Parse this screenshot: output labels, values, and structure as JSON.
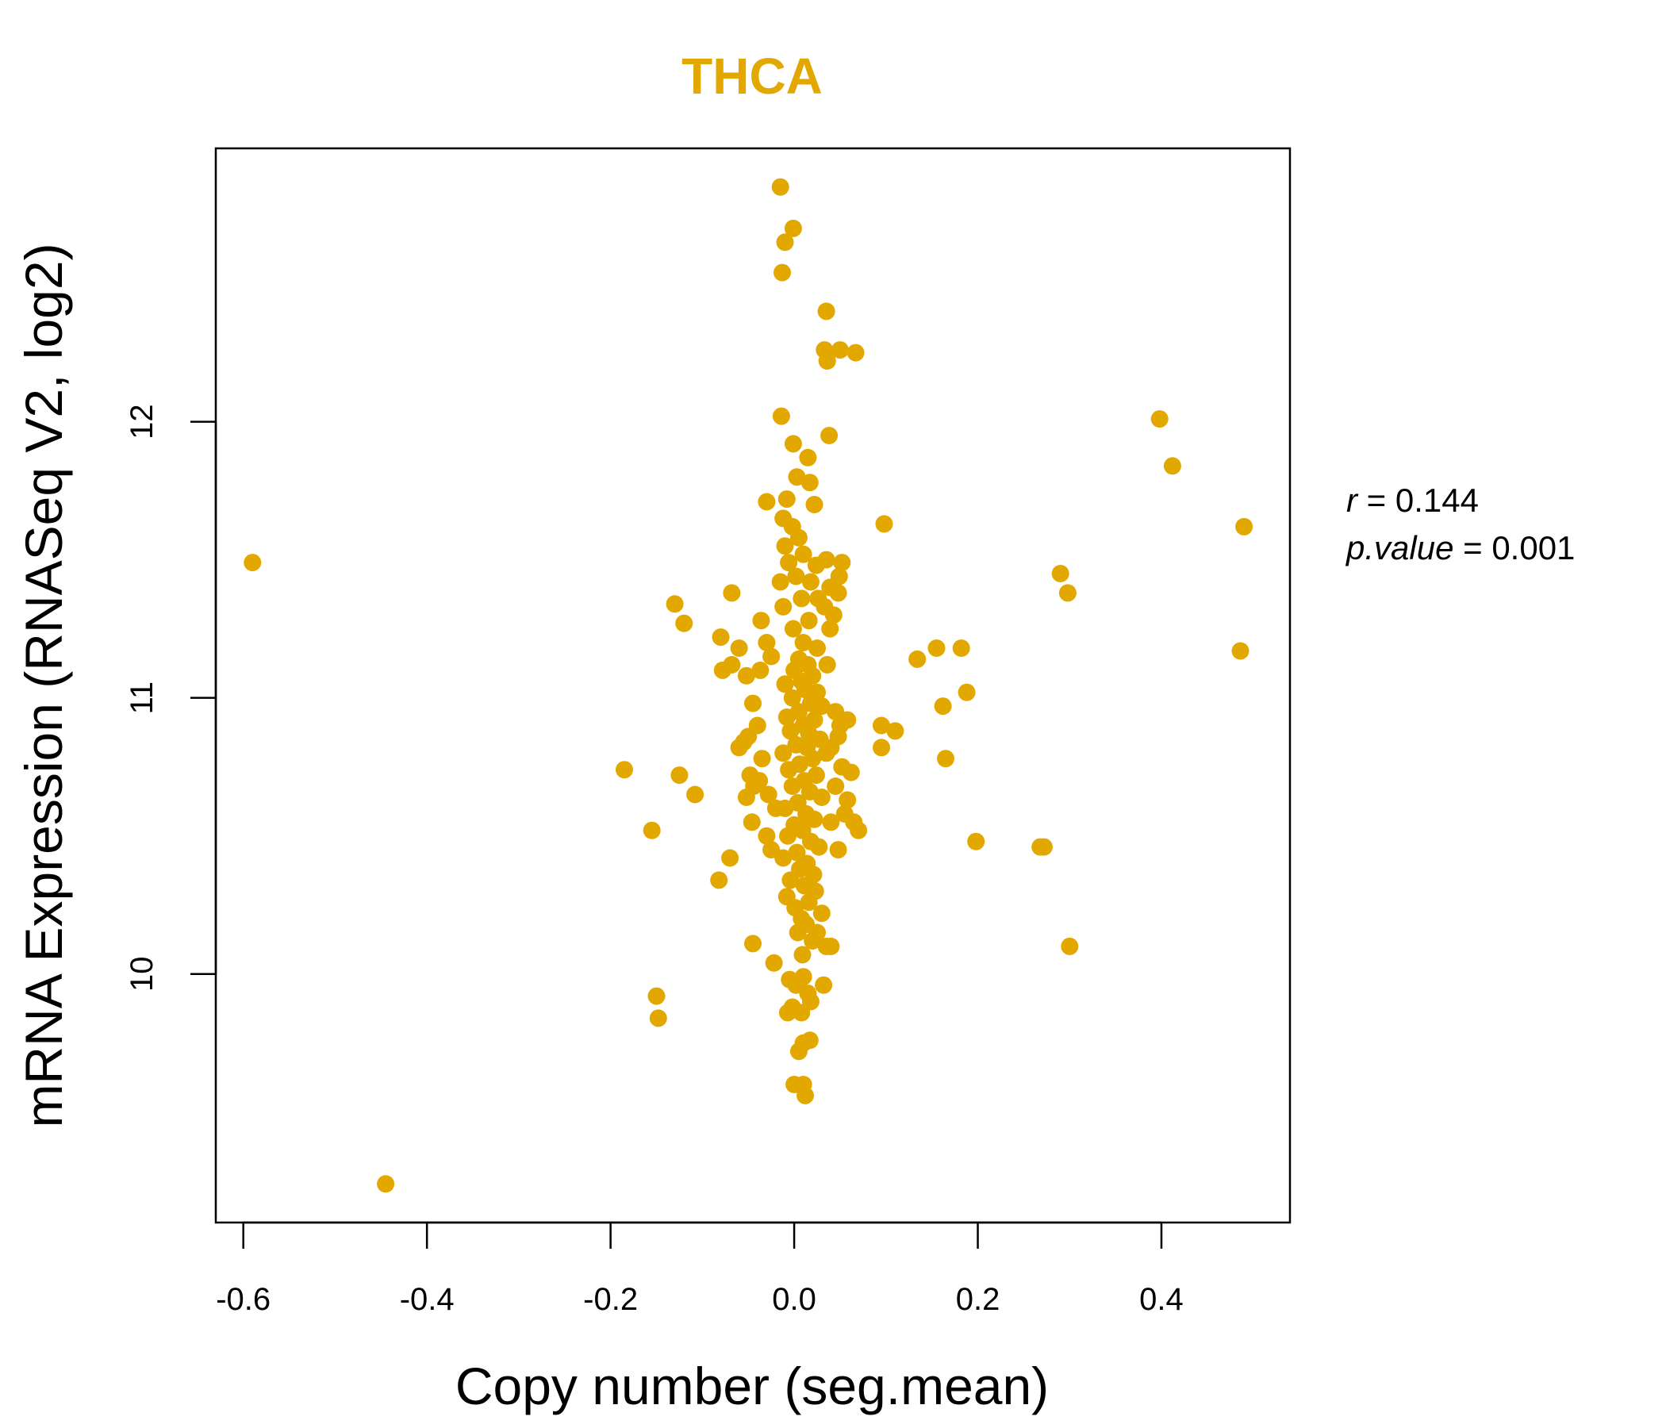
{
  "chart_data": {
    "type": "scatter",
    "title": "THCA",
    "xlabel": "Copy number (seg.mean)",
    "ylabel": "mRNA Expression (RNASeq V2, log2)",
    "xlim": [
      -0.63,
      0.54
    ],
    "ylim": [
      9.1,
      12.99
    ],
    "xticks": [
      -0.6,
      -0.4,
      -0.2,
      0.0,
      0.2,
      0.4
    ],
    "xtick_labels": [
      "-0.6",
      "-0.4",
      "-0.2",
      "0.0",
      "0.2",
      "0.4"
    ],
    "yticks": [
      10,
      11,
      12
    ],
    "ytick_labels": [
      "10",
      "11",
      "12"
    ],
    "grid": false,
    "point_color": "#E3A800",
    "stats": {
      "r_label": "r",
      "r_value": "0.144",
      "p_label": "p.value",
      "p_value": "0.001"
    },
    "points": [
      [
        -0.015,
        12.85
      ],
      [
        -0.001,
        12.7
      ],
      [
        -0.01,
        12.65
      ],
      [
        -0.013,
        12.54
      ],
      [
        0.035,
        12.4
      ],
      [
        0.033,
        12.26
      ],
      [
        0.05,
        12.26
      ],
      [
        0.067,
        12.25
      ],
      [
        0.036,
        12.22
      ],
      [
        -0.014,
        12.02
      ],
      [
        0.038,
        11.95
      ],
      [
        -0.001,
        11.92
      ],
      [
        0.015,
        11.87
      ],
      [
        0.003,
        11.8
      ],
      [
        0.017,
        11.78
      ],
      [
        -0.03,
        11.71
      ],
      [
        -0.008,
        11.72
      ],
      [
        0.022,
        11.7
      ],
      [
        -0.012,
        11.65
      ],
      [
        -0.002,
        11.62
      ],
      [
        0.005,
        11.58
      ],
      [
        -0.01,
        11.55
      ],
      [
        0.01,
        11.52
      ],
      [
        -0.006,
        11.49
      ],
      [
        0.024,
        11.48
      ],
      [
        0.035,
        11.5
      ],
      [
        0.052,
        11.49
      ],
      [
        0.049,
        11.44
      ],
      [
        0.002,
        11.44
      ],
      [
        -0.015,
        11.42
      ],
      [
        0.018,
        11.42
      ],
      [
        0.039,
        11.4
      ],
      [
        0.048,
        11.38
      ],
      [
        0.008,
        11.36
      ],
      [
        0.026,
        11.36
      ],
      [
        -0.012,
        11.33
      ],
      [
        0.033,
        11.33
      ],
      [
        0.043,
        11.3
      ],
      [
        0.016,
        11.28
      ],
      [
        -0.001,
        11.25
      ],
      [
        0.039,
        11.25
      ],
      [
        0.01,
        11.2
      ],
      [
        0.025,
        11.18
      ],
      [
        0.036,
        11.12
      ],
      [
        0.005,
        11.14
      ],
      [
        0.015,
        11.12
      ],
      [
        0.0,
        11.1
      ],
      [
        0.02,
        11.08
      ],
      [
        0.008,
        11.06
      ],
      [
        -0.01,
        11.05
      ],
      [
        0.012,
        11.03
      ],
      [
        0.025,
        11.02
      ],
      [
        -0.002,
        11.0
      ],
      [
        0.018,
        10.98
      ],
      [
        0.03,
        10.97
      ],
      [
        0.005,
        10.95
      ],
      [
        -0.008,
        10.93
      ],
      [
        0.022,
        10.92
      ],
      [
        0.01,
        10.9
      ],
      [
        -0.004,
        10.88
      ],
      [
        0.016,
        10.87
      ],
      [
        0.028,
        10.85
      ],
      [
        0.002,
        10.83
      ],
      [
        0.014,
        10.82
      ],
      [
        -0.012,
        10.8
      ],
      [
        0.02,
        10.78
      ],
      [
        0.006,
        10.76
      ],
      [
        -0.006,
        10.74
      ],
      [
        0.024,
        10.72
      ],
      [
        0.011,
        10.7
      ],
      [
        -0.002,
        10.68
      ],
      [
        0.017,
        10.66
      ],
      [
        0.03,
        10.64
      ],
      [
        0.004,
        10.62
      ],
      [
        -0.01,
        10.6
      ],
      [
        0.013,
        10.58
      ],
      [
        0.022,
        10.56
      ],
      [
        0.0,
        10.54
      ],
      [
        0.009,
        10.52
      ],
      [
        -0.007,
        10.5
      ],
      [
        0.018,
        10.48
      ],
      [
        0.027,
        10.46
      ],
      [
        0.003,
        10.44
      ],
      [
        -0.012,
        10.42
      ],
      [
        0.014,
        10.4
      ],
      [
        0.006,
        10.38
      ],
      [
        0.021,
        10.36
      ],
      [
        -0.004,
        10.34
      ],
      [
        0.011,
        10.32
      ],
      [
        0.023,
        10.3
      ],
      [
        -0.008,
        10.28
      ],
      [
        0.016,
        10.26
      ],
      [
        0.001,
        10.24
      ],
      [
        0.03,
        10.22
      ],
      [
        0.008,
        10.2
      ],
      [
        0.013,
        10.18
      ],
      [
        0.004,
        10.15
      ],
      [
        0.025,
        10.15
      ],
      [
        0.02,
        10.12
      ],
      [
        0.035,
        10.1
      ],
      [
        -0.045,
        10.11
      ],
      [
        0.009,
        10.07
      ],
      [
        0.04,
        10.1
      ],
      [
        -0.022,
        10.04
      ],
      [
        0.01,
        9.99
      ],
      [
        -0.005,
        9.98
      ],
      [
        0.002,
        9.96
      ],
      [
        0.032,
        9.96
      ],
      [
        0.015,
        9.93
      ],
      [
        0.018,
        9.9
      ],
      [
        -0.002,
        9.88
      ],
      [
        0.008,
        9.86
      ],
      [
        -0.007,
        9.86
      ],
      [
        0.017,
        9.76
      ],
      [
        0.01,
        9.75
      ],
      [
        0.005,
        9.72
      ],
      [
        0.0,
        9.6
      ],
      [
        0.01,
        9.6
      ],
      [
        0.012,
        9.56
      ],
      [
        -0.045,
        10.98
      ],
      [
        -0.04,
        10.9
      ],
      [
        -0.05,
        10.86
      ],
      [
        -0.055,
        10.84
      ],
      [
        -0.035,
        10.78
      ],
      [
        -0.048,
        10.72
      ],
      [
        -0.044,
        10.68
      ],
      [
        -0.052,
        10.64
      ],
      [
        -0.046,
        10.55
      ],
      [
        -0.03,
        10.5
      ],
      [
        -0.06,
        10.82
      ],
      [
        -0.038,
        10.7
      ],
      [
        -0.028,
        10.65
      ],
      [
        -0.02,
        10.6
      ],
      [
        -0.025,
        10.45
      ],
      [
        0.045,
        10.95
      ],
      [
        0.058,
        10.92
      ],
      [
        0.048,
        10.86
      ],
      [
        0.04,
        10.82
      ],
      [
        0.052,
        10.75
      ],
      [
        0.062,
        10.73
      ],
      [
        0.045,
        10.68
      ],
      [
        0.058,
        10.63
      ],
      [
        0.055,
        10.58
      ],
      [
        0.04,
        10.55
      ],
      [
        0.065,
        10.55
      ],
      [
        0.07,
        10.52
      ],
      [
        0.048,
        10.45
      ],
      [
        0.035,
        10.8
      ],
      [
        0.05,
        10.9
      ],
      [
        -0.08,
        11.22
      ],
      [
        -0.068,
        11.38
      ],
      [
        -0.06,
        11.18
      ],
      [
        -0.036,
        11.28
      ],
      [
        -0.03,
        11.2
      ],
      [
        -0.078,
        11.1
      ],
      [
        -0.068,
        11.12
      ],
      [
        -0.052,
        11.08
      ],
      [
        -0.037,
        11.1
      ],
      [
        -0.025,
        11.15
      ],
      [
        -0.13,
        11.34
      ],
      [
        -0.12,
        11.27
      ],
      [
        -0.185,
        10.74
      ],
      [
        -0.125,
        10.72
      ],
      [
        -0.108,
        10.65
      ],
      [
        -0.155,
        10.52
      ],
      [
        -0.07,
        10.42
      ],
      [
        -0.082,
        10.34
      ],
      [
        -0.15,
        9.92
      ],
      [
        -0.148,
        9.84
      ],
      [
        0.098,
        11.63
      ],
      [
        0.134,
        11.14
      ],
      [
        0.155,
        11.18
      ],
      [
        0.182,
        11.18
      ],
      [
        0.162,
        10.97
      ],
      [
        0.188,
        11.02
      ],
      [
        0.095,
        10.9
      ],
      [
        0.11,
        10.88
      ],
      [
        0.095,
        10.82
      ],
      [
        0.165,
        10.78
      ],
      [
        0.198,
        10.48
      ],
      [
        0.268,
        10.46
      ],
      [
        0.272,
        10.46
      ],
      [
        0.29,
        11.45
      ],
      [
        0.298,
        11.38
      ],
      [
        0.3,
        10.1
      ],
      [
        0.398,
        12.01
      ],
      [
        0.412,
        11.84
      ],
      [
        0.49,
        11.62
      ],
      [
        0.486,
        11.17
      ],
      [
        -0.59,
        11.49
      ],
      [
        -0.445,
        9.24
      ]
    ]
  }
}
